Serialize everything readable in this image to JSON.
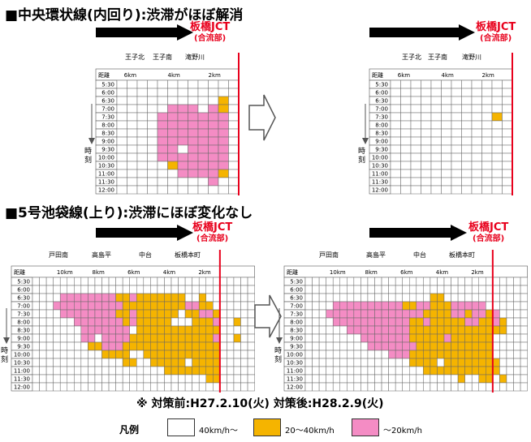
{
  "sections": [
    {
      "title": "■中央環状線(内回り):渋滞がほぼ解消",
      "jct_label": "板橋JCT",
      "jct_sub": "(合流部)",
      "place_labels": [
        "王子北",
        "王子南",
        "滝野川"
      ],
      "dist_header": "距離",
      "dist_labels": [
        "6km",
        "4km",
        "2km"
      ],
      "time_axis_label": "時刻",
      "times": [
        "5:30",
        "6:00",
        "6:30",
        "7:00",
        "7:30",
        "8:00",
        "8:30",
        "9:00",
        "9:30",
        "10:00",
        "10:30",
        "11:00",
        "11:30",
        "12:00"
      ]
    },
    {
      "title": "■5号池袋線(上り):渋滞にほぼ変化なし",
      "jct_label": "板橋JCT",
      "jct_sub": "(合流部)",
      "place_labels": [
        "戸田南",
        "高島平",
        "中台",
        "板橋本町"
      ],
      "dist_header": "距離",
      "dist_labels": [
        "10km",
        "8km",
        "6km",
        "4km",
        "2km"
      ],
      "time_axis_label": "時刻",
      "times": [
        "5:30",
        "6:00",
        "6:30",
        "7:00",
        "7:30",
        "8:00",
        "8:30",
        "9:00",
        "9:30",
        "10:00",
        "10:30",
        "11:00",
        "11:30",
        "12:00"
      ]
    }
  ],
  "footnote": "※ 対策前:H27.2.10(火) 対策後:H28.2.9(火)",
  "legend": {
    "title": "凡例",
    "items": [
      {
        "label": "40km/h〜",
        "color": "#ffffff"
      },
      {
        "label": "20〜40km/h",
        "color": "#f5b400"
      },
      {
        "label": "〜20km/h",
        "color": "#f48cc4"
      }
    ]
  },
  "colors": {
    "white": "#ffffff",
    "orange": "#f5b400",
    "pink": "#f48cc4",
    "red": "#e8001c",
    "grid": "#555555"
  },
  "chart_data": [
    {
      "type": "heatmap",
      "title": "中央環状線(内回り) 対策前",
      "rows": [
        "5:30",
        "6:00",
        "6:30",
        "7:00",
        "7:30",
        "8:00",
        "8:30",
        "9:00",
        "9:30",
        "10:00",
        "10:30",
        "11:00",
        "11:30",
        "12:00"
      ],
      "legend": [
        "W = 40km/h〜",
        "O = 20〜40km/h",
        "P = 〜20km/h"
      ],
      "cells": [
        "WWWWWWWWWWWW",
        "WWWWWWWWWWWW",
        "WWWWWWWWWWOW",
        "WWWWWPPPWPOW",
        "WWWWPPPPPPPW",
        "WWWWPPPPPPPW",
        "WWWWPPPPPPPW",
        "WWWWPPPPPPPW",
        "WWWWPPWPPPPW",
        "WWWWPPPPPPPW",
        "WWWWWOPPPPPW",
        "WWWWWWPPPPOW",
        "WWWWWWWWWPWW",
        "WWWWWWWWWWWW"
      ]
    },
    {
      "type": "heatmap",
      "title": "中央環状線(内回り) 対策後",
      "rows": [
        "5:30",
        "6:00",
        "6:30",
        "7:00",
        "7:30",
        "8:00",
        "8:30",
        "9:00",
        "9:30",
        "10:00",
        "10:30",
        "11:00",
        "11:30",
        "12:00"
      ],
      "legend": [
        "W = 40km/h〜",
        "O = 20〜40km/h",
        "P = 〜20km/h"
      ],
      "cells": [
        "WWWWWWWWWWWW",
        "WWWWWWWWWWWW",
        "WWWWWWWWWWWW",
        "WWWWWWWWWWWW",
        "WWWWWWWWWWOW",
        "WWWWWWWWWWWW",
        "WWWWWWWWWWWW",
        "WWWWWWWWWWWW",
        "WWWWWWWWWWWW",
        "WWWWWWWWWWWW",
        "WWWWWWWWWWWW",
        "WWWWWWWWWWWW",
        "WWWWWWWWWWWW",
        "WWWWWWWWWWWW"
      ]
    },
    {
      "type": "heatmap",
      "title": "5号池袋線(上り) 対策前",
      "rows": [
        "5:30",
        "6:00",
        "6:30",
        "7:00",
        "7:30",
        "8:00",
        "8:30",
        "9:00",
        "9:30",
        "10:00",
        "10:30",
        "11:00",
        "11:30",
        "12:00"
      ],
      "legend": [
        "W = 40km/h〜",
        "O = 20〜40km/h",
        "P = 〜20km/h"
      ],
      "cells": [
        "WWWWWWWWWWWWWWWWWWWWWWWWWWWWWWWW",
        "WWWWWWWWWWWWWWWWWWWWWWWWWWWWWWWW",
        "WWWWPPPPPPPPOOPOOOOOOOWWOWWWWWWW",
        "WWWPPPPPPPPPPOOOOOOOOOPPOOWWWWWW",
        "WWWWPPPPPPPPOOPOOOOOOWOOPPOWWWWW",
        "WWWWWWPPPPPPPOPOOOOOWWWOOOPWWOWW",
        "WWWWWWWPPPPPPPWOOOOOOOOOOOOWWWWW",
        "WWWWWWWPPWPPPPOOOOOOOOOOOOPWWOWW",
        "WWWWWWWWOOPPPOOOOOOOOOOOOOOWWWWW",
        "WWWWWWWWWWOOOOWWOOOOOOOOOOOWWWWW",
        "WWWWWWWWWWWWWOOWWOOOOOWOOOOWWWWW",
        "WWWWWWWWWWWWWWWWWWWOOOOOOOOWWWWW",
        "WWWWWWWWWWWWWWWWWWWWWWWWWOOWWWWW",
        "WWWWWWWWWWWWWWWWWWWWWWWWWWWWWWWW"
      ]
    },
    {
      "type": "heatmap",
      "title": "5号池袋線(上り) 対策後",
      "rows": [
        "5:30",
        "6:00",
        "6:30",
        "7:00",
        "7:30",
        "8:00",
        "8:30",
        "9:00",
        "9:30",
        "10:00",
        "10:30",
        "11:00",
        "11:30",
        "12:00"
      ],
      "legend": [
        "W = 40km/h〜",
        "O = 20〜40km/h",
        "P = 〜20km/h"
      ],
      "cells": [
        "WWWWWWWWWWWWWWWWWWWWWWWWWWWWWWWW",
        "WWWWWWWWWWWWWWWWWWWWWWWWWWWWWWWW",
        "WWWWWWWWWWWWWWWWWWOOWWWWWWWWWWWW",
        "WWWWPPPPPPPPPPOOPPOOOPPPPPWWWWWW",
        "WWWPPPPPPPPPPPPPPOOOOPPOPPOPWWWW",
        "WWWWPPPPPPPPPPPOOPOOOOOPPOOPOWWW",
        "WWWWWWPPPPPPPPPOOOOOOOOOOOOOOWWW",
        "WWWWWWWWPPPPPPPOOOOOPOOOOOOWWWWW",
        "WWWWWWWWWPPPPPPPOOOOOOOOOOOWWWWW",
        "WWWWWWWWWWWWPPPOOOOOOOOOOOOWWWWW",
        "WWWWWWWWWWWWWWWOOOOWOOOOOOOOWWWW",
        "WWWWWWWWWWWWWWWWWOOOOOOOOOOOWWWW",
        "WWWWWWWWWWWWWWWWWWWWWWOWWOOWOWWW",
        "WWWWWWWWWWWWWWWWWWWWWWWWWWWWWWWW"
      ]
    }
  ]
}
